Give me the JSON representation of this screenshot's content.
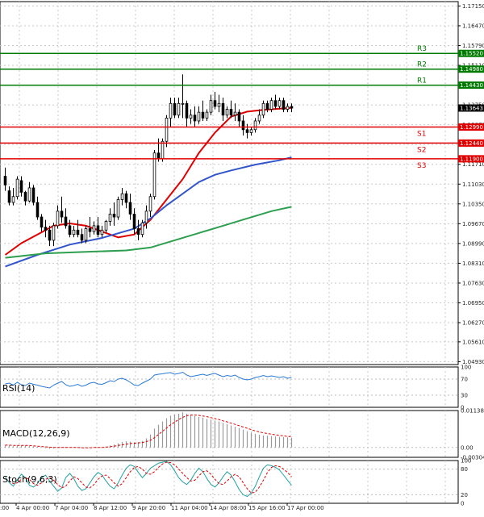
{
  "chart_data": [
    {
      "type": "candlestick",
      "panel": "price",
      "x_tick_labels": [
        "4 Apr 00:00",
        "7 Apr 04:00",
        "8 Apr 12:00",
        "9 Apr 20:00",
        "11 Apr 04:00",
        "14 Apr 08:00",
        "15 Apr 16:00",
        "17 Apr 00:00"
      ],
      "x_first_label": ":00",
      "y_tick_labels": [
        "1.17150",
        "1.16470",
        "1.15790",
        "1.15110",
        "1.14430",
        "1.13750",
        "1.13070",
        "1.12390",
        "1.11710",
        "1.11030",
        "1.10350",
        "1.09670",
        "1.08990",
        "1.08310",
        "1.07630",
        "1.06950",
        "1.06270",
        "1.05610",
        "1.04930"
      ],
      "ylim": [
        1.0483,
        1.173
      ],
      "current_price": {
        "value": 1.13643,
        "label": "1.13643"
      },
      "levels": [
        {
          "name": "R3",
          "value": 1.1552,
          "label": "1.15520",
          "color": "#007a00"
        },
        {
          "name": "R2",
          "value": 1.1498,
          "label": "1.14980",
          "color": "#007a00"
        },
        {
          "name": "R1",
          "value": 1.1443,
          "label": "1.14430",
          "color": "#007a00"
        },
        {
          "name": "S1",
          "value": 1.1299,
          "label": "1.12990",
          "color": "#e00000"
        },
        {
          "name": "S2",
          "value": 1.1244,
          "label": "1.12440",
          "color": "#e00000"
        },
        {
          "name": "S3",
          "value": 1.119,
          "label": "1.11900",
          "color": "#e00000"
        }
      ],
      "candles": [
        [
          1.113,
          1.116,
          1.11,
          1.108
        ],
        [
          1.108,
          1.1095,
          1.104,
          1.103
        ],
        [
          1.104,
          1.109,
          1.106,
          1.103
        ],
        [
          1.106,
          1.113,
          1.112,
          1.105
        ],
        [
          1.1115,
          1.113,
          1.1075,
          1.106
        ],
        [
          1.1075,
          1.108,
          1.1045,
          1.103
        ],
        [
          1.1045,
          1.111,
          1.109,
          1.104
        ],
        [
          1.109,
          1.11,
          1.104,
          1.103
        ],
        [
          1.104,
          1.106,
          1.099,
          1.098
        ],
        [
          1.099,
          1.1,
          1.0955,
          1.094
        ],
        [
          1.0955,
          1.098,
          1.0945,
          1.092
        ],
        [
          1.0945,
          1.096,
          1.091,
          1.089
        ],
        [
          1.091,
          1.097,
          1.096,
          1.089
        ],
        [
          1.096,
          1.103,
          1.101,
          1.095
        ],
        [
          1.101,
          1.106,
          1.099,
          1.097
        ],
        [
          1.099,
          1.102,
          1.096,
          1.095
        ],
        [
          1.096,
          1.098,
          1.093,
          1.092
        ],
        [
          1.093,
          1.096,
          1.0945,
          1.092
        ],
        [
          1.0945,
          1.098,
          1.093,
          1.092
        ],
        [
          1.093,
          1.095,
          1.091,
          1.09
        ],
        [
          1.091,
          1.096,
          1.095,
          1.09
        ],
        [
          1.095,
          1.099,
          1.094,
          1.092
        ],
        [
          1.094,
          1.0975,
          1.096,
          1.093
        ],
        [
          1.096,
          1.099,
          1.093,
          1.092
        ],
        [
          1.093,
          1.096,
          1.0945,
          1.092
        ],
        [
          1.0945,
          1.098,
          1.0975,
          1.0935
        ],
        [
          1.0975,
          1.102,
          1.1,
          1.096
        ],
        [
          1.1,
          1.104,
          1.099,
          1.096
        ],
        [
          1.099,
          1.106,
          1.105,
          1.098
        ],
        [
          1.105,
          1.109,
          1.107,
          1.103
        ],
        [
          1.107,
          1.108,
          1.104,
          1.102
        ],
        [
          1.104,
          1.107,
          1.1,
          1.098
        ],
        [
          1.1,
          1.102,
          1.095,
          1.093
        ],
        [
          1.095,
          1.098,
          1.093,
          1.091
        ],
        [
          1.093,
          1.098,
          1.097,
          1.092
        ],
        [
          1.097,
          1.103,
          1.101,
          1.095
        ],
        [
          1.101,
          1.107,
          1.106,
          1.099
        ],
        [
          1.106,
          1.122,
          1.121,
          1.105
        ],
        [
          1.121,
          1.126,
          1.119,
          1.118
        ],
        [
          1.119,
          1.126,
          1.125,
          1.118
        ],
        [
          1.125,
          1.134,
          1.133,
          1.123
        ],
        [
          1.133,
          1.14,
          1.138,
          1.13
        ],
        [
          1.138,
          1.14,
          1.134,
          1.133
        ],
        [
          1.134,
          1.14,
          1.138,
          1.133
        ],
        [
          1.138,
          1.148,
          1.138,
          1.133
        ],
        [
          1.138,
          1.139,
          1.133,
          1.13
        ],
        [
          1.133,
          1.136,
          1.134,
          1.131
        ],
        [
          1.134,
          1.137,
          1.132,
          1.13
        ],
        [
          1.132,
          1.137,
          1.135,
          1.131
        ],
        [
          1.135,
          1.139,
          1.133,
          1.132
        ],
        [
          1.133,
          1.136,
          1.135,
          1.132
        ],
        [
          1.135,
          1.141,
          1.139,
          1.134
        ],
        [
          1.139,
          1.142,
          1.137,
          1.136
        ],
        [
          1.137,
          1.141,
          1.138,
          1.135
        ],
        [
          1.138,
          1.14,
          1.134,
          1.132
        ],
        [
          1.134,
          1.137,
          1.136,
          1.133
        ],
        [
          1.136,
          1.139,
          1.134,
          1.133
        ],
        [
          1.134,
          1.138,
          1.135,
          1.132
        ],
        [
          1.135,
          1.136,
          1.132,
          1.13
        ],
        [
          1.132,
          1.134,
          1.129,
          1.127
        ],
        [
          1.129,
          1.131,
          1.128,
          1.126
        ],
        [
          1.128,
          1.13,
          1.129,
          1.127
        ],
        [
          1.129,
          1.133,
          1.132,
          1.128
        ],
        [
          1.132,
          1.136,
          1.134,
          1.131
        ],
        [
          1.134,
          1.139,
          1.138,
          1.133
        ],
        [
          1.138,
          1.139,
          1.136,
          1.135
        ],
        [
          1.136,
          1.14,
          1.139,
          1.135
        ],
        [
          1.139,
          1.141,
          1.137,
          1.136
        ],
        [
          1.137,
          1.14,
          1.139,
          1.136
        ],
        [
          1.139,
          1.14,
          1.136,
          1.135
        ],
        [
          1.136,
          1.138,
          1.137,
          1.135
        ],
        [
          1.137,
          1.138,
          1.1364,
          1.135
        ]
      ],
      "ma_series": [
        {
          "color": "#e00000",
          "values": [
            [
              0,
              1.086
            ],
            [
              4,
              1.09
            ],
            [
              8,
              1.093
            ],
            [
              12,
              1.096
            ],
            [
              16,
              1.0968
            ],
            [
              20,
              1.096
            ],
            [
              24,
              1.094
            ],
            [
              28,
              1.092
            ],
            [
              32,
              1.093
            ],
            [
              36,
              1.098
            ],
            [
              40,
              1.105
            ],
            [
              44,
              1.112
            ],
            [
              48,
              1.121
            ],
            [
              52,
              1.128
            ],
            [
              56,
              1.1335
            ],
            [
              60,
              1.1352
            ],
            [
              64,
              1.1358
            ],
            [
              68,
              1.1362
            ],
            [
              71,
              1.1365
            ]
          ]
        },
        {
          "color": "#3355cc",
          "values": [
            [
              0,
              1.082
            ],
            [
              8,
              1.086
            ],
            [
              16,
              1.0895
            ],
            [
              24,
              1.0918
            ],
            [
              32,
              1.095
            ],
            [
              36,
              1.0985
            ],
            [
              40,
              1.103
            ],
            [
              44,
              1.107
            ],
            [
              48,
              1.111
            ],
            [
              52,
              1.1135
            ],
            [
              56,
              1.115
            ],
            [
              62,
              1.117
            ],
            [
              68,
              1.1185
            ],
            [
              71,
              1.1195
            ]
          ]
        },
        {
          "color": "#2e9e4f",
          "values": [
            [
              0,
              1.085
            ],
            [
              10,
              1.0865
            ],
            [
              20,
              1.087
            ],
            [
              30,
              1.0875
            ],
            [
              36,
              1.0885
            ],
            [
              42,
              1.091
            ],
            [
              48,
              1.0935
            ],
            [
              54,
              1.096
            ],
            [
              60,
              1.0985
            ],
            [
              66,
              1.101
            ],
            [
              71,
              1.1025
            ]
          ]
        }
      ]
    },
    {
      "type": "line",
      "panel": "rsi",
      "title": "RSI(14)",
      "y_tick_labels": [
        "100",
        "70",
        "30",
        "0"
      ],
      "ylim": [
        0,
        100
      ],
      "values": [
        58,
        60,
        55,
        62,
        56,
        54,
        60,
        57,
        55,
        52,
        50,
        48,
        55,
        60,
        64,
        56,
        52,
        54,
        57,
        52,
        55,
        60,
        62,
        58,
        57,
        61,
        66,
        64,
        70,
        72,
        68,
        62,
        55,
        54,
        60,
        65,
        70,
        80,
        82,
        83,
        85,
        86,
        82,
        84,
        87,
        80,
        76,
        78,
        80,
        82,
        79,
        82,
        84,
        80,
        76,
        79,
        77,
        80,
        74,
        70,
        68,
        70,
        74,
        76,
        79,
        76,
        78,
        76,
        74,
        76,
        72,
        74
      ]
    },
    {
      "type": "bar",
      "panel": "macd",
      "title": "MACD(12,26,9)",
      "y_tick_labels": [
        "0.011382",
        "0.00",
        "-0.003044"
      ],
      "ylim": [
        -0.003044,
        0.011382
      ],
      "histogram": [
        0.0008,
        0.0006,
        0.0004,
        0.0006,
        0.0007,
        0.0006,
        0.0005,
        0.0004,
        0.0002,
        0.0,
        -0.0002,
        -0.0004,
        -0.0003,
        0.0,
        0.0002,
        0.0002,
        0.0001,
        0.0,
        -0.0001,
        -0.0002,
        -0.0002,
        -0.0001,
        0.0,
        0.0,
        0.0001,
        0.0003,
        0.0006,
        0.0009,
        0.0013,
        0.0017,
        0.0019,
        0.0018,
        0.0016,
        0.0016,
        0.002,
        0.0028,
        0.004,
        0.0058,
        0.007,
        0.008,
        0.009,
        0.0098,
        0.0102,
        0.0104,
        0.0108,
        0.0104,
        0.01,
        0.0097,
        0.0094,
        0.0092,
        0.0088,
        0.0086,
        0.0083,
        0.008,
        0.0076,
        0.0072,
        0.0068,
        0.0064,
        0.006,
        0.0055,
        0.005,
        0.0046,
        0.0042,
        0.0039,
        0.0037,
        0.0036,
        0.0035,
        0.0034,
        0.0033,
        0.0032,
        0.0031,
        0.003
      ],
      "signal": [
        0.0007,
        0.0007,
        0.0006,
        0.0006,
        0.0006,
        0.0006,
        0.0006,
        0.0005,
        0.0004,
        0.0003,
        0.0002,
        0.0001,
        0.0,
        0.0,
        0.0,
        0.0,
        0.0,
        0.0,
        0.0,
        -0.0001,
        -0.0001,
        -0.0001,
        0.0,
        0.0,
        0.0,
        0.0001,
        0.0002,
        0.0004,
        0.0006,
        0.0008,
        0.001,
        0.0012,
        0.0013,
        0.0014,
        0.0015,
        0.0018,
        0.0022,
        0.003,
        0.004,
        0.005,
        0.006,
        0.007,
        0.0078,
        0.0086,
        0.0093,
        0.0098,
        0.01,
        0.01,
        0.0099,
        0.0097,
        0.0095,
        0.0092,
        0.0089,
        0.0086,
        0.0082,
        0.0079,
        0.0075,
        0.0071,
        0.0067,
        0.0063,
        0.0059,
        0.0055,
        0.0051,
        0.0048,
        0.0045,
        0.0043,
        0.0041,
        0.0039,
        0.0037,
        0.0036,
        0.0034,
        0.0033
      ]
    },
    {
      "type": "line",
      "panel": "stoch",
      "title": "Stoch(9,6,3)",
      "y_tick_labels": [
        "100",
        "80",
        "20",
        "0"
      ],
      "ylim": [
        0,
        100
      ],
      "k": [
        62,
        48,
        40,
        55,
        68,
        60,
        42,
        38,
        46,
        60,
        66,
        52,
        40,
        28,
        36,
        60,
        70,
        58,
        40,
        30,
        34,
        48,
        62,
        72,
        66,
        52,
        40,
        34,
        48,
        66,
        82,
        90,
        86,
        72,
        60,
        70,
        82,
        88,
        94,
        96,
        98,
        90,
        76,
        60,
        50,
        44,
        54,
        70,
        82,
        74,
        58,
        44,
        38,
        48,
        62,
        74,
        66,
        50,
        32,
        20,
        16,
        24,
        40,
        62,
        82,
        90,
        88,
        84,
        78,
        66,
        54,
        42
      ],
      "d": [
        58,
        52,
        46,
        48,
        56,
        60,
        56,
        46,
        42,
        48,
        56,
        60,
        54,
        44,
        36,
        40,
        52,
        62,
        58,
        48,
        38,
        36,
        44,
        56,
        64,
        66,
        58,
        48,
        40,
        46,
        60,
        74,
        84,
        86,
        80,
        70,
        68,
        74,
        84,
        92,
        96,
        95,
        90,
        80,
        70,
        60,
        52,
        54,
        64,
        74,
        76,
        68,
        56,
        46,
        44,
        52,
        62,
        68,
        62,
        48,
        34,
        24,
        26,
        38,
        54,
        72,
        84,
        88,
        86,
        80,
        72,
        62
      ]
    }
  ]
}
